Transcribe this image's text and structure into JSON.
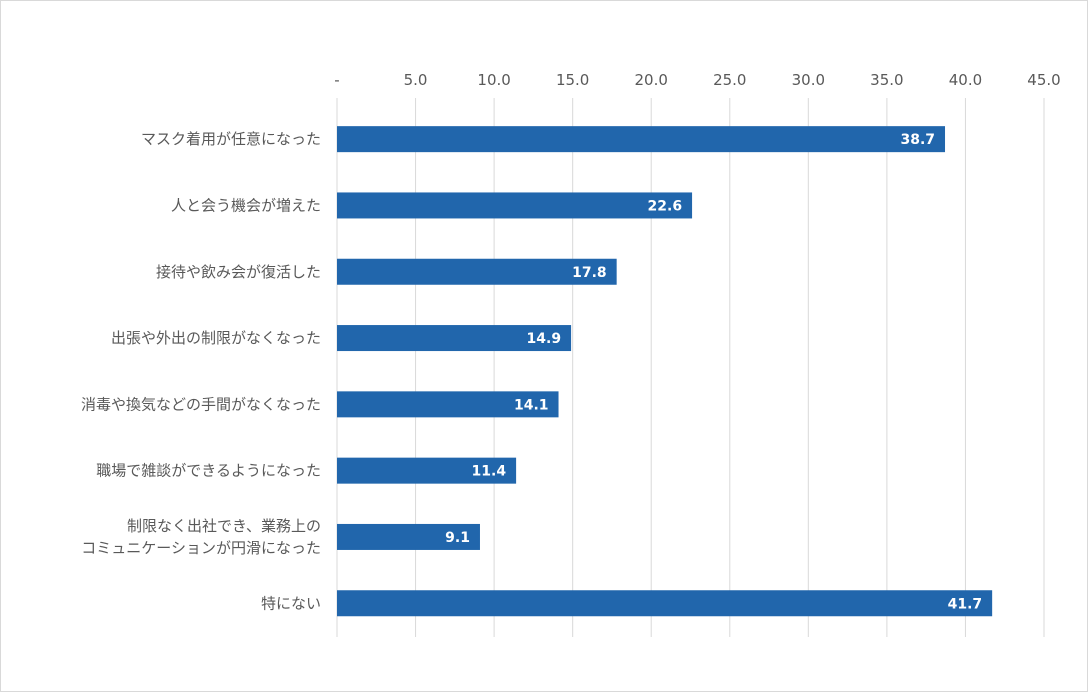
{
  "chart_data": {
    "type": "bar",
    "orientation": "horizontal",
    "title": "",
    "xlabel": "",
    "ylabel": "",
    "xlim": [
      0,
      45
    ],
    "tick_labels": [
      "-",
      "5.0",
      "10.0",
      "15.0",
      "20.0",
      "25.0",
      "30.0",
      "35.0",
      "40.0",
      "45.0"
    ],
    "grid": true,
    "axis_position": "top",
    "categories": [
      [
        "マスク着用が任意になった"
      ],
      [
        "人と会う機会が増えた"
      ],
      [
        "接待や飲み会が復活した"
      ],
      [
        "出張や外出の制限がなくなった"
      ],
      [
        "消毒や換気などの手間がなくなった"
      ],
      [
        "職場で雑談ができるようになった"
      ],
      [
        "制限なく出社でき、業務上の",
        "コミュニケーションが円滑になった"
      ],
      [
        "特にない"
      ]
    ],
    "values": [
      38.7,
      22.6,
      17.8,
      14.9,
      14.1,
      11.4,
      9.1,
      41.7
    ],
    "value_labels": [
      "38.7",
      "22.6",
      "17.8",
      "14.9",
      "14.1",
      "11.4",
      "9.1",
      "41.7"
    ],
    "bar_color": "#2166ac",
    "grid_color": "#d9d9d9",
    "text_color": "#595959"
  }
}
